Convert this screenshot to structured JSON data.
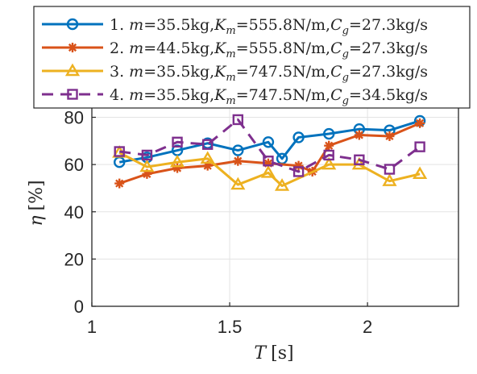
{
  "chart_data": {
    "type": "line",
    "xlabel": "T [s]",
    "ylabel": "η [%]",
    "xlim": [
      1,
      2.33
    ],
    "ylim": [
      0,
      87
    ],
    "xticks": [
      1,
      1.5,
      2
    ],
    "xtick_labels": [
      "1",
      "1.5",
      "2"
    ],
    "yticks": [
      0,
      20,
      40,
      60,
      80
    ],
    "ytick_labels": [
      "0",
      "20",
      "40",
      "60",
      "80"
    ],
    "grid": true,
    "legend_position": "top",
    "series": [
      {
        "name": "1. m=35.5kg,Km=555.8N/m,Cg=27.3kg/s",
        "color": "#0072BD",
        "marker": "circle",
        "dash": "solid",
        "x": [
          1.1,
          1.2,
          1.31,
          1.42,
          1.53,
          1.64,
          1.69,
          1.75,
          1.86,
          1.97,
          2.08,
          2.19
        ],
        "y": [
          61,
          63,
          66,
          69,
          66,
          69.5,
          62.5,
          71.5,
          73,
          75,
          74.5,
          78.5
        ]
      },
      {
        "name": "2. m=44.5kg,Km=555.8N/m,Cg=27.3kg/s",
        "color": "#D95319",
        "marker": "star",
        "dash": "solid",
        "x": [
          1.1,
          1.2,
          1.31,
          1.42,
          1.53,
          1.64,
          1.75,
          1.8,
          1.86,
          1.97,
          2.08,
          2.19
        ],
        "y": [
          52,
          56,
          58.5,
          59.5,
          61.5,
          60.5,
          59.5,
          57,
          68,
          72.5,
          72,
          77.5
        ]
      },
      {
        "name": "3. m=35.5kg,Km=747.5N/m,Cg=27.3kg/s",
        "color": "#EDB120",
        "marker": "triangle",
        "dash": "solid",
        "x": [
          1.1,
          1.2,
          1.31,
          1.42,
          1.53,
          1.64,
          1.69,
          1.86,
          1.97,
          2.08,
          2.19
        ],
        "y": [
          65,
          59,
          61,
          62.5,
          51.5,
          56.5,
          51,
          60,
          60,
          53,
          56
        ]
      },
      {
        "name": "4. m=35.5kg,Km=747.5N/m,Cg=34.5kg/s",
        "color": "#7E2F8E",
        "marker": "square",
        "dash": "dashed",
        "x": [
          1.1,
          1.2,
          1.31,
          1.42,
          1.53,
          1.64,
          1.75,
          1.86,
          1.97,
          2.08,
          2.19
        ],
        "y": [
          65.5,
          64,
          69.5,
          68.5,
          79,
          61.5,
          57,
          64,
          62,
          58,
          67.5
        ]
      }
    ]
  },
  "legend": {
    "entries": [
      {
        "num": "1.",
        "m": "35.5kg",
        "km": "555.8N/m",
        "cg": "27.3kg/s"
      },
      {
        "num": "2.",
        "m": "44.5kg",
        "km": "555.8N/m",
        "cg": "27.3kg/s"
      },
      {
        "num": "3.",
        "m": "35.5kg",
        "km": "747.5N/m",
        "cg": "27.3kg/s"
      },
      {
        "num": "4.",
        "m": "35.5kg",
        "km": "747.5N/m",
        "cg": "34.5kg/s"
      }
    ]
  }
}
